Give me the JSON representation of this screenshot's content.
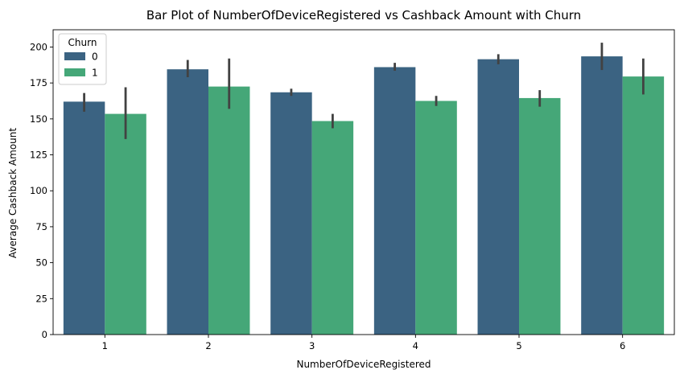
{
  "chart_data": {
    "type": "bar",
    "title": "Bar Plot of NumberOfDeviceRegistered vs Cashback Amount with Churn",
    "xlabel": "NumberOfDeviceRegistered",
    "ylabel": "Average Cashback Amount",
    "categories": [
      "1",
      "2",
      "3",
      "4",
      "5",
      "6"
    ],
    "ylim": [
      0,
      212
    ],
    "yticks": [
      0,
      25,
      50,
      75,
      100,
      125,
      150,
      175,
      200
    ],
    "legend": {
      "title": "Churn",
      "placement": "top-left"
    },
    "grid": false,
    "series": [
      {
        "name": "0",
        "color": "#3b6382",
        "values": [
          162,
          184.5,
          168.5,
          186,
          191.5,
          193.5
        ],
        "error_low": [
          155,
          179,
          166,
          183.5,
          188,
          184
        ],
        "error_high": [
          168,
          191,
          171,
          189,
          195,
          203
        ]
      },
      {
        "name": "1",
        "color": "#45a778",
        "values": [
          153.5,
          172.5,
          148.5,
          162.5,
          164.5,
          179.5
        ],
        "error_low": [
          136,
          157,
          143.5,
          159,
          158.5,
          167
        ],
        "error_high": [
          172,
          192,
          153.5,
          166,
          170,
          192
        ]
      }
    ]
  }
}
